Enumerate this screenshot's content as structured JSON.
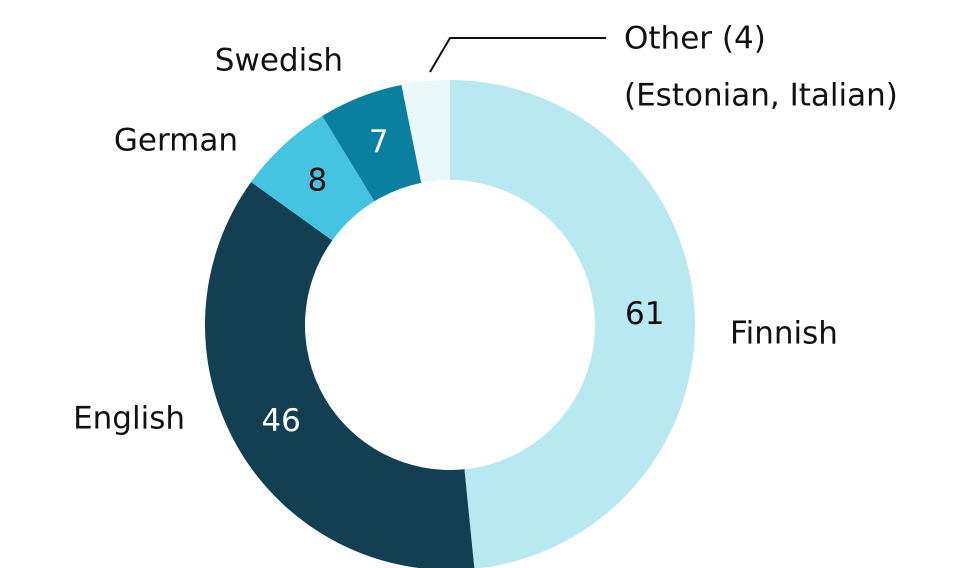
{
  "chart_data": {
    "type": "donut",
    "categories": [
      "Finnish",
      "English",
      "German",
      "Swedish",
      "Other (4)"
    ],
    "values": [
      61,
      46,
      8,
      7,
      4
    ],
    "colors": [
      "#b8e8f0",
      "#123f52",
      "#45c3e0",
      "#0a7fa0",
      "#eaf8fa"
    ],
    "annotations": [
      "(Estonian, Italian)"
    ]
  }
}
